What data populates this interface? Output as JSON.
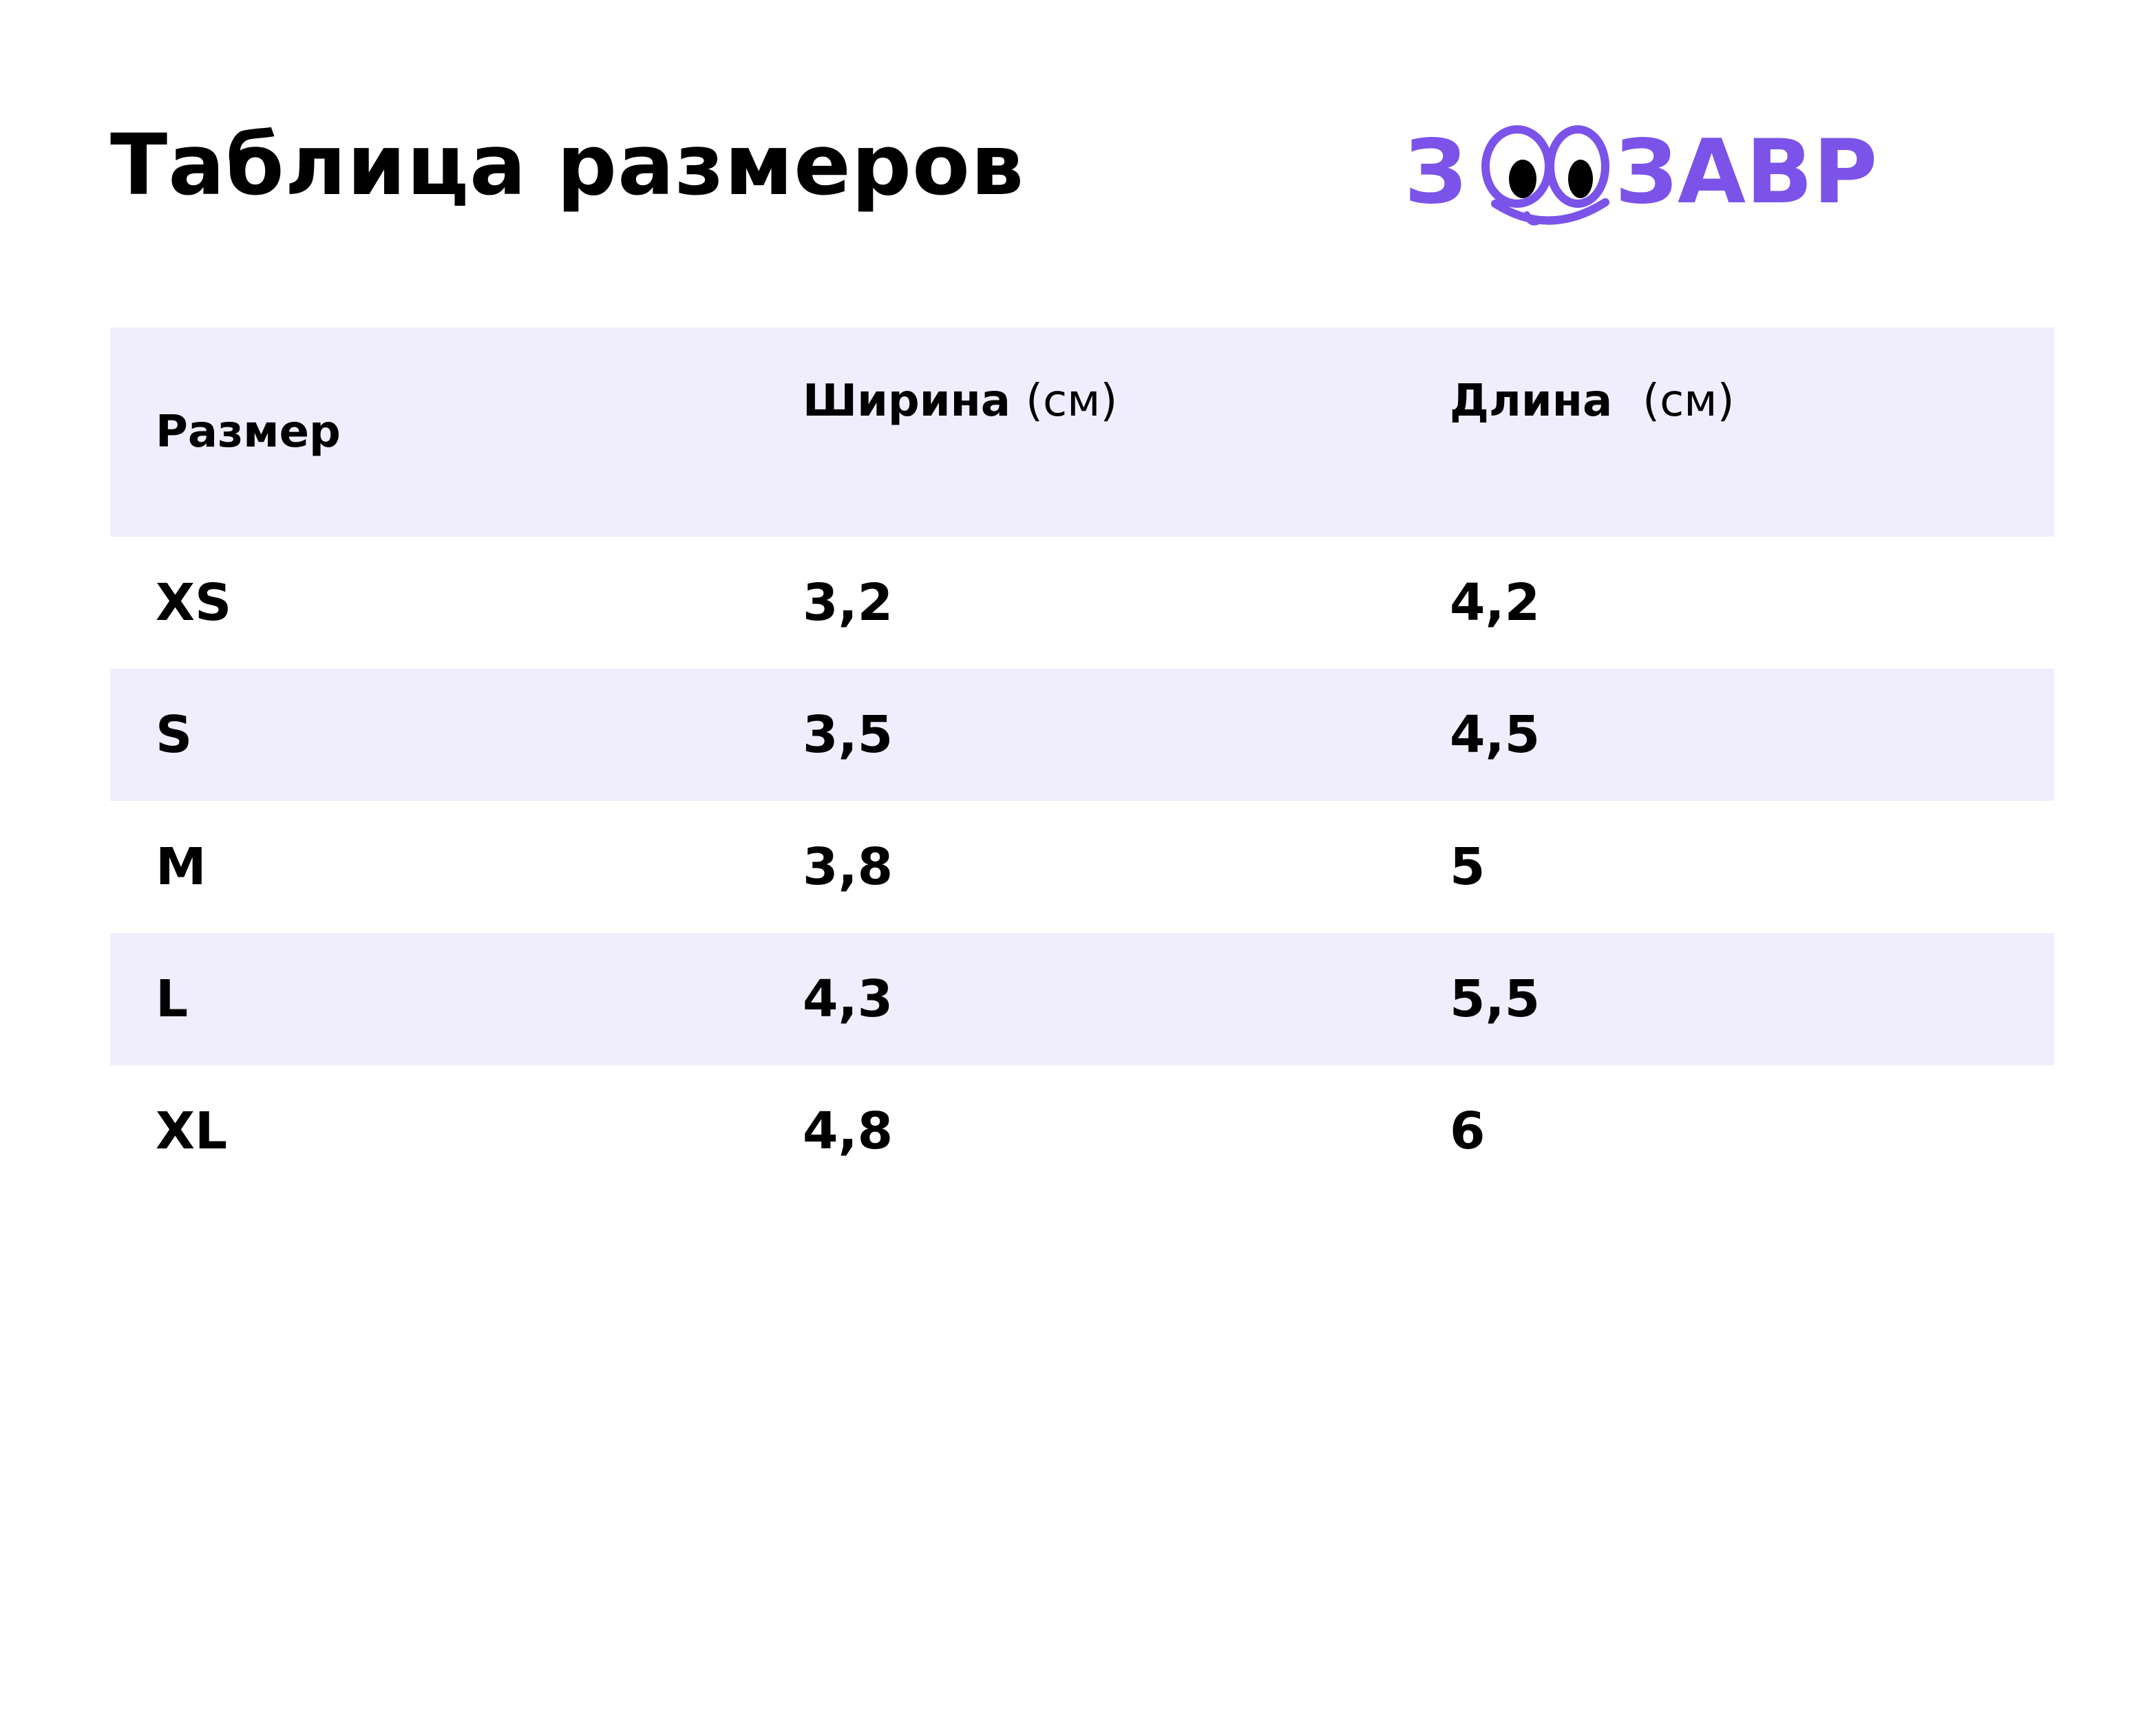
{
  "page": {
    "title": "Таблица размеров"
  },
  "brand": {
    "name": "ЗООЗАВР",
    "text_left": "З",
    "text_right": "ЗАВР",
    "color": "#7b53e8"
  },
  "table": {
    "header": {
      "size": "Размер",
      "width_label": "Ширина",
      "width_unit": "(см)",
      "length_label": "Длина",
      "length_unit": "(см)"
    },
    "rows": [
      {
        "size": "XS",
        "width": "3,2",
        "length": "4,2"
      },
      {
        "size": "S",
        "width": "3,5",
        "length": "4,5"
      },
      {
        "size": "M",
        "width": "3,8",
        "length": "5"
      },
      {
        "size": "L",
        "width": "4,3",
        "length": "5,5"
      },
      {
        "size": "XL",
        "width": "4,8",
        "length": "6"
      }
    ],
    "stripe_color": "#f0eefc"
  }
}
